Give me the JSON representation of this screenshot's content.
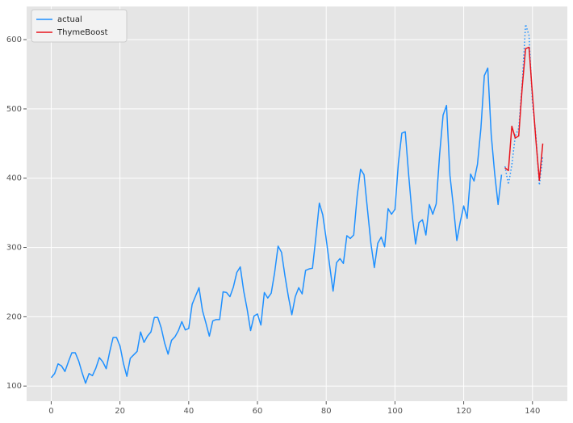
{
  "chart_data": {
    "type": "line",
    "legend": "upper left",
    "grid": true,
    "xlim": [
      -7.15,
      150.15
    ],
    "ylim": [
      78.1,
      647.9
    ],
    "xticks": [
      0,
      20,
      40,
      60,
      80,
      100,
      120,
      140
    ],
    "yticks": [
      100,
      200,
      300,
      400,
      500,
      600
    ],
    "series": [
      {
        "name": "actual",
        "color": "#1e90ff",
        "style": "solid",
        "x": [
          0,
          1,
          2,
          3,
          4,
          5,
          6,
          7,
          8,
          9,
          10,
          11,
          12,
          13,
          14,
          15,
          16,
          17,
          18,
          19,
          20,
          21,
          22,
          23,
          24,
          25,
          26,
          27,
          28,
          29,
          30,
          31,
          32,
          33,
          34,
          35,
          36,
          37,
          38,
          39,
          40,
          41,
          42,
          43,
          44,
          45,
          46,
          47,
          48,
          49,
          50,
          51,
          52,
          53,
          54,
          55,
          56,
          57,
          58,
          59,
          60,
          61,
          62,
          63,
          64,
          65,
          66,
          67,
          68,
          69,
          70,
          71,
          72,
          73,
          74,
          75,
          76,
          77,
          78,
          79,
          80,
          81,
          82,
          83,
          84,
          85,
          86,
          87,
          88,
          89,
          90,
          91,
          92,
          93,
          94,
          95,
          96,
          97,
          98,
          99,
          100,
          101,
          102,
          103,
          104,
          105,
          106,
          107,
          108,
          109,
          110,
          111,
          112,
          113,
          114,
          115,
          116,
          117,
          118,
          119,
          120,
          121,
          122,
          123,
          124,
          125,
          126,
          127,
          128,
          129,
          130,
          131
        ],
        "values": [
          112,
          118,
          132,
          129,
          121,
          135,
          148,
          148,
          136,
          119,
          104,
          118,
          115,
          126,
          141,
          135,
          125,
          149,
          170,
          170,
          158,
          133,
          114,
          140,
          145,
          150,
          178,
          163,
          172,
          178,
          199,
          199,
          184,
          162,
          146,
          166,
          171,
          180,
          193,
          181,
          183,
          218,
          230,
          242,
          209,
          191,
          172,
          194,
          196,
          196,
          236,
          235,
          229,
          243,
          264,
          272,
          237,
          211,
          180,
          201,
          204,
          188,
          235,
          227,
          234,
          264,
          302,
          293,
          259,
          229,
          203,
          229,
          242,
          233,
          267,
          269,
          270,
          315,
          364,
          347,
          312,
          274,
          237,
          278,
          284,
          277,
          317,
          313,
          318,
          374,
          413,
          405,
          355,
          306,
          271,
          306,
          315,
          301,
          356,
          348,
          355,
          422,
          465,
          467,
          404,
          347,
          305,
          336,
          340,
          318,
          362,
          348,
          363,
          435,
          491,
          505,
          404,
          359,
          310,
          337,
          360,
          342,
          406,
          396,
          420,
          472,
          548,
          559,
          463,
          407,
          362,
          405
        ]
      },
      {
        "color": "#1e90ff",
        "style": "dotted",
        "x": [
          132,
          133,
          134,
          135,
          136,
          137,
          138,
          139,
          140,
          141,
          142,
          143
        ],
        "values": [
          417,
          391,
          419,
          461,
          472,
          535,
          622,
          606,
          508,
          461,
          390,
          432
        ]
      },
      {
        "name": "ThymeBoost",
        "color": "#e8141c",
        "style": "solid",
        "x": [
          132,
          133,
          134,
          135,
          136,
          137,
          138,
          139,
          140,
          141,
          142,
          143
        ],
        "values": [
          415,
          411,
          475,
          458,
          461,
          530,
          587,
          589,
          520,
          455,
          397,
          450
        ]
      }
    ]
  }
}
